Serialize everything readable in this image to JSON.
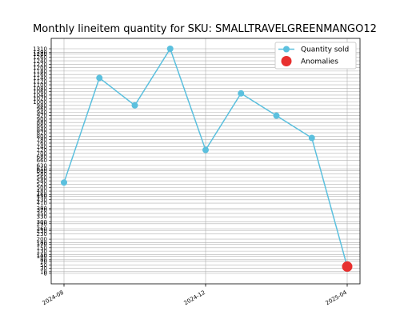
{
  "chart_data": {
    "type": "line",
    "title": "Monthly lineitem quantity for SKU: SMALLTRAVELGREENMANGO12",
    "xlabel": "",
    "ylabel": "",
    "x": [
      "2024-08",
      "2024-09",
      "2024-10",
      "2024-11",
      "2024-12",
      "2025-01",
      "2025-02",
      "2025-03",
      "2025-04"
    ],
    "xticks": [
      "2024-08",
      "2024-12",
      "2025-04"
    ],
    "ylim": [
      0,
      1310
    ],
    "yticks": [
      0,
      10,
      30,
      50,
      70,
      80,
      100,
      110,
      130,
      150,
      170,
      180,
      200,
      230,
      250,
      260,
      290,
      300,
      330,
      350,
      370,
      380,
      410,
      430,
      450,
      460,
      480,
      500,
      520,
      540,
      560,
      580,
      600,
      610,
      630,
      660,
      680,
      700,
      720,
      740,
      760,
      780,
      800,
      820,
      840,
      860,
      880,
      900,
      920,
      940,
      960,
      980,
      1000,
      1020,
      1040,
      1060,
      1080,
      1100,
      1120,
      1140,
      1160,
      1180,
      1200,
      1220,
      1240,
      1260,
      1280,
      1290,
      1310
    ],
    "grid": true,
    "legend_position": "top-right",
    "series": [
      {
        "name": "Quantity sold",
        "color": "#5bc0de",
        "values": [
          530,
          1140,
          980,
          1310,
          720,
          1050,
          920,
          790,
          40
        ]
      },
      {
        "name": "Anomalies",
        "color": "#e8302f",
        "type": "scatter",
        "points": [
          {
            "x": "2025-04",
            "y": 40
          }
        ]
      }
    ]
  }
}
